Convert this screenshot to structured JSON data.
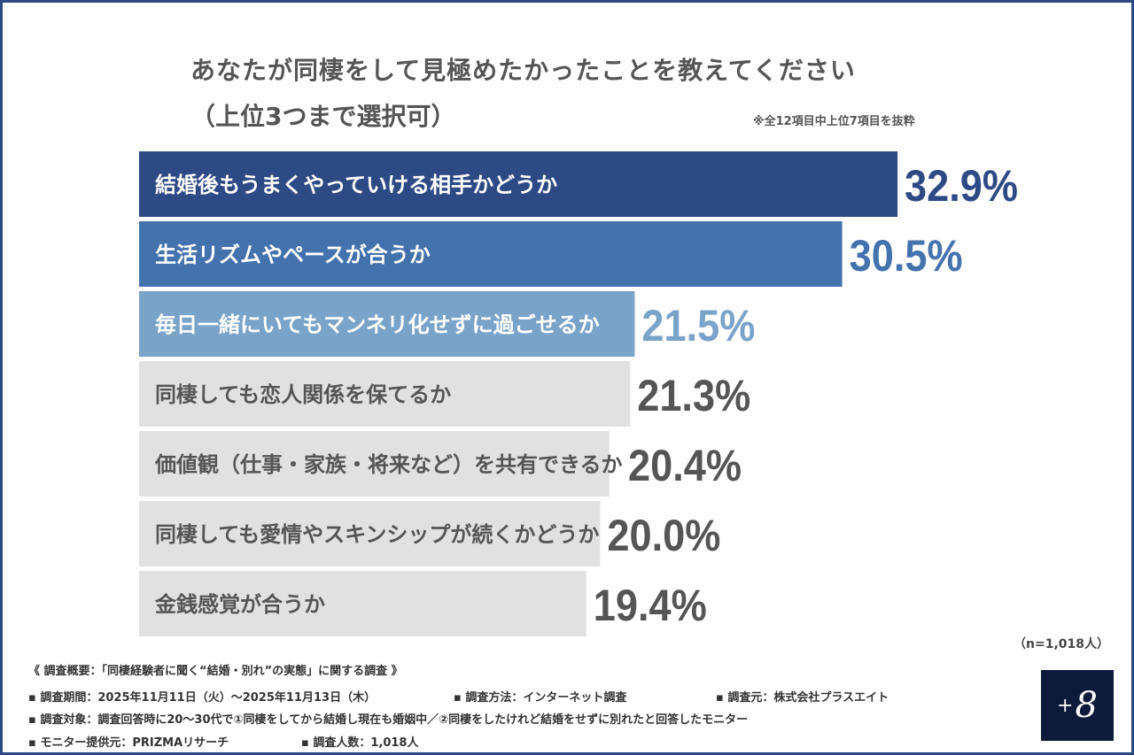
{
  "title": "あなたが同棲をして見極めたかったことを教えてください",
  "subtitle": "（上位3つまで選択可）",
  "note": "※全12項目中上位7項目を抜粋",
  "sample": "（n=1,018人）",
  "chart_data": {
    "type": "bar",
    "orientation": "horizontal",
    "unit": "%",
    "categories": [
      "結婚後もうまくやっていける相手かどうか",
      "生活リズムやペースが合うか",
      "毎日一緒にいてもマンネリ化せずに過ごせるか",
      "同棲しても恋人関係を保てるか",
      "価値観（仕事・家族・将来など）を共有できるか",
      "同棲しても愛情やスキンシップが続くかどうか",
      "金銭感覚が合うか"
    ],
    "values": [
      32.9,
      30.5,
      21.5,
      21.3,
      20.4,
      20.0,
      19.4
    ],
    "labels": [
      "32.9%",
      "30.5%",
      "21.5%",
      "21.3%",
      "20.4%",
      "20.0%",
      "19.4%"
    ],
    "bar_colors": [
      "#2e4a85",
      "#4472ad",
      "#7aa3c9",
      "#e1e1e1",
      "#e1e1e1",
      "#e1e1e1",
      "#e1e1e1"
    ],
    "label_colors": [
      "#2e4a85",
      "#4472ad",
      "#7aa3c9",
      "#555555",
      "#555555",
      "#555555",
      "#555555"
    ],
    "text_colors": [
      "#ffffff",
      "#ffffff",
      "#ffffff",
      "#555555",
      "#555555",
      "#555555",
      "#555555"
    ]
  },
  "footer": {
    "overview": "《 調査概要：「同棲経験者に聞く“結婚・別れ”の実態」に関する調査 》",
    "period": "▪ 調査期間：2025年11月11日（火）〜2025年11月13日（木）",
    "method": "▪ 調査方法：インターネット調査",
    "source": "▪ 調査元：株式会社プラスエイト",
    "target": "▪ 調査対象：調査回答時に20〜30代で①同棲をしてから結婚し現在も婚姻中／②同棲をしたけれど結婚をせずに別れたと回答したモニター",
    "provider": "▪ モニター提供元：PRIZMAリサーチ",
    "count": "▪ 調査人数：1,018人"
  },
  "logo": {
    "plus": "+",
    "eight": "8"
  }
}
